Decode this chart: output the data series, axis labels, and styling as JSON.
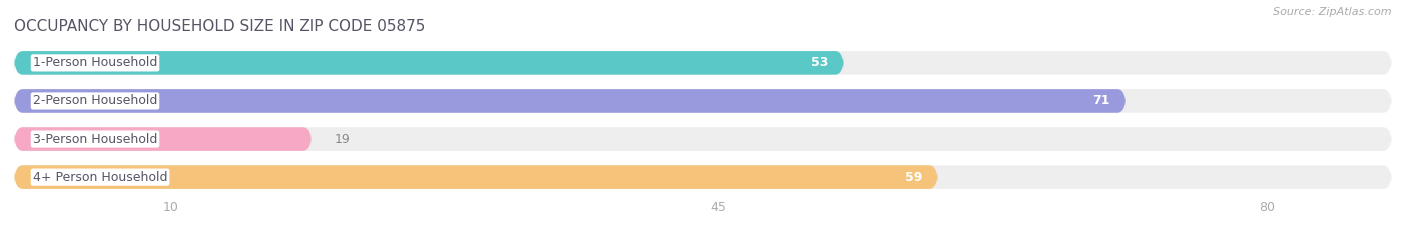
{
  "title": "OCCUPANCY BY HOUSEHOLD SIZE IN ZIP CODE 05875",
  "source_text": "Source: ZipAtlas.com",
  "categories": [
    "1-Person Household",
    "2-Person Household",
    "3-Person Household",
    "4+ Person Household"
  ],
  "values": [
    53,
    71,
    19,
    59
  ],
  "bar_colors": [
    "#5BC8C8",
    "#9999DD",
    "#F7A8C4",
    "#F5C47A"
  ],
  "label_box_edge_colors": [
    "#5BC8C8",
    "#9999DD",
    "#F7A8C4",
    "#F5C47A"
  ],
  "value_inside_bar": [
    true,
    true,
    false,
    true
  ],
  "xlim_max": 88,
  "xticks": [
    10,
    45,
    80
  ],
  "tick_fontsize": 9,
  "label_fontsize": 9,
  "title_fontsize": 11,
  "source_fontsize": 8,
  "bg_color": "#ffffff",
  "bar_bg_color": "#eeeeee",
  "bar_height": 0.62,
  "title_color": "#555566",
  "source_color": "#aaaaaa",
  "value_color_inside": "#ffffff",
  "value_color_outside": "#888888",
  "label_text_color": "#555566",
  "tick_color": "#aaaaaa",
  "grid_color": "#ffffff"
}
